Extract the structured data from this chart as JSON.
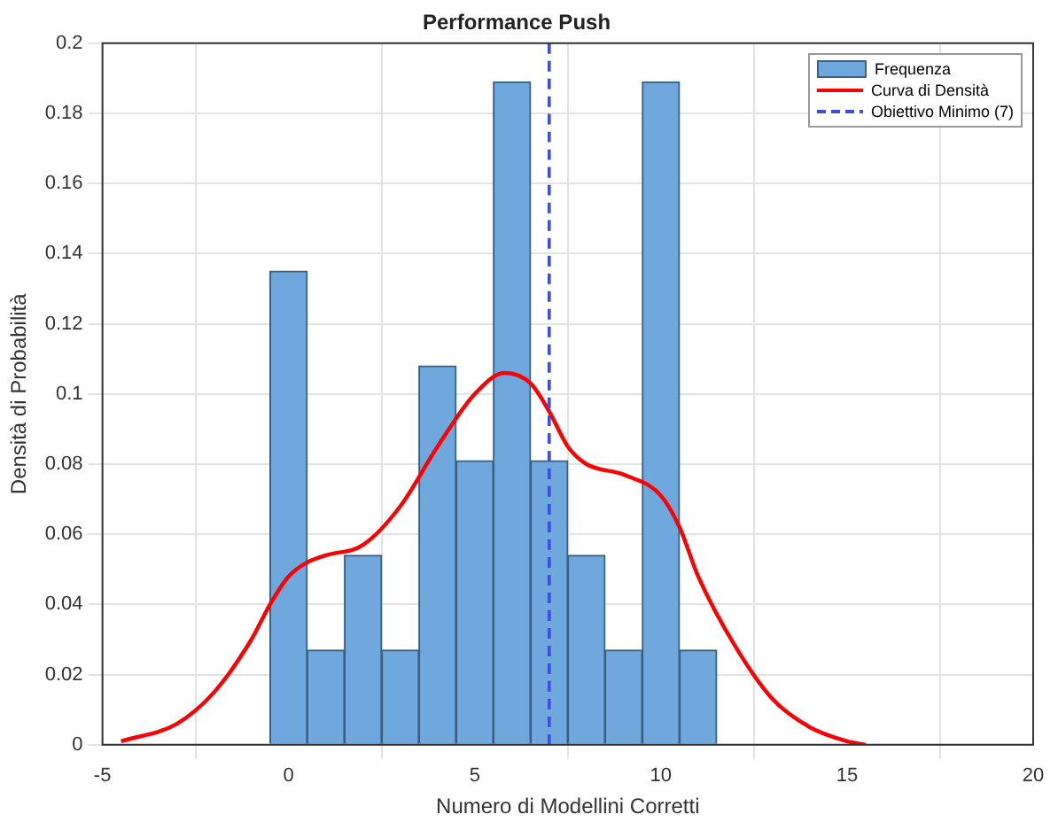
{
  "chart_data": {
    "type": "histogram",
    "title": "Performance Push",
    "xlabel": "Numero di Modellini Corretti",
    "ylabel": "Densità di Probabilità",
    "bins": [
      -0.5,
      0.5,
      1.5,
      2.5,
      3.5,
      4.5,
      5.5,
      6.5,
      7.5,
      8.5,
      9.5,
      10.5,
      11.5
    ],
    "series": [
      {
        "name": "Frequenza",
        "color": "#6fa8dc",
        "values": [
          0.135,
          0.027,
          0.054,
          0.027,
          0.108,
          0.081,
          0.189,
          0.081,
          0.054,
          0.027,
          0.189,
          0.027
        ]
      },
      {
        "type": "line",
        "name": "Curva di Densità",
        "color": "#ff0000",
        "x": [
          -4.5,
          -3,
          -2,
          -1,
          -0.5,
          0,
          0.5,
          1,
          2,
          3,
          4,
          5,
          5.8,
          6.5,
          7,
          7.5,
          8,
          9,
          10,
          10.5,
          11,
          12,
          13,
          14,
          15,
          15.5
        ],
        "values": [
          0.001,
          0.006,
          0.015,
          0.03,
          0.04,
          0.048,
          0.052,
          0.054,
          0.057,
          0.068,
          0.085,
          0.1,
          0.106,
          0.103,
          0.095,
          0.085,
          0.08,
          0.077,
          0.071,
          0.062,
          0.048,
          0.028,
          0.013,
          0.005,
          0.001,
          0
        ]
      },
      {
        "type": "line",
        "name": "Obiettivo Minimo (7)",
        "color": "#3b4fe0",
        "line_style": "dashed",
        "x": [
          7,
          7
        ],
        "values": [
          0,
          0.2
        ]
      }
    ],
    "xlim": [
      -5,
      20
    ],
    "xticks": [
      -5,
      0,
      5,
      10,
      15,
      20
    ],
    "ylim": [
      0,
      0.2
    ],
    "yticks": [
      0,
      0.02,
      0.04,
      0.06,
      0.08,
      0.1,
      0.12,
      0.14,
      0.16,
      0.18,
      0.2
    ],
    "grid": true,
    "legend": "top right"
  }
}
